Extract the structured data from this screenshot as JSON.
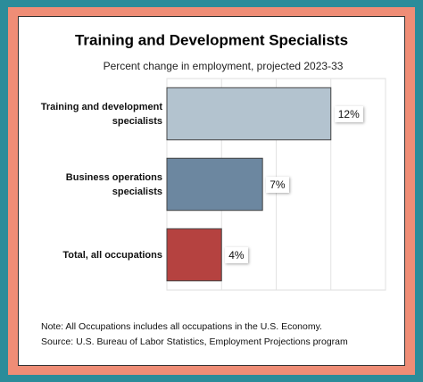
{
  "chart_data": {
    "type": "hbar",
    "title": "Training and Development Specialists",
    "subtitle": "Percent change in employment, projected 2023-33",
    "categories": [
      "Training and development specialists",
      "Business operations specialists",
      "Total, all occupations"
    ],
    "values": [
      12,
      7,
      4
    ],
    "value_labels": [
      "12%",
      "7%",
      "4%"
    ],
    "colors": [
      "#b3c3cf",
      "#6c87a0",
      "#b54240"
    ],
    "xlim": [
      0,
      16
    ],
    "xticks": [
      0,
      4,
      8,
      12,
      16
    ],
    "grid": true,
    "notes": [
      "Note: All Occupations includes all occupations in the U.S. Economy.",
      "Source: U.S. Bureau of Labor Statistics, Employment Projections program"
    ]
  }
}
